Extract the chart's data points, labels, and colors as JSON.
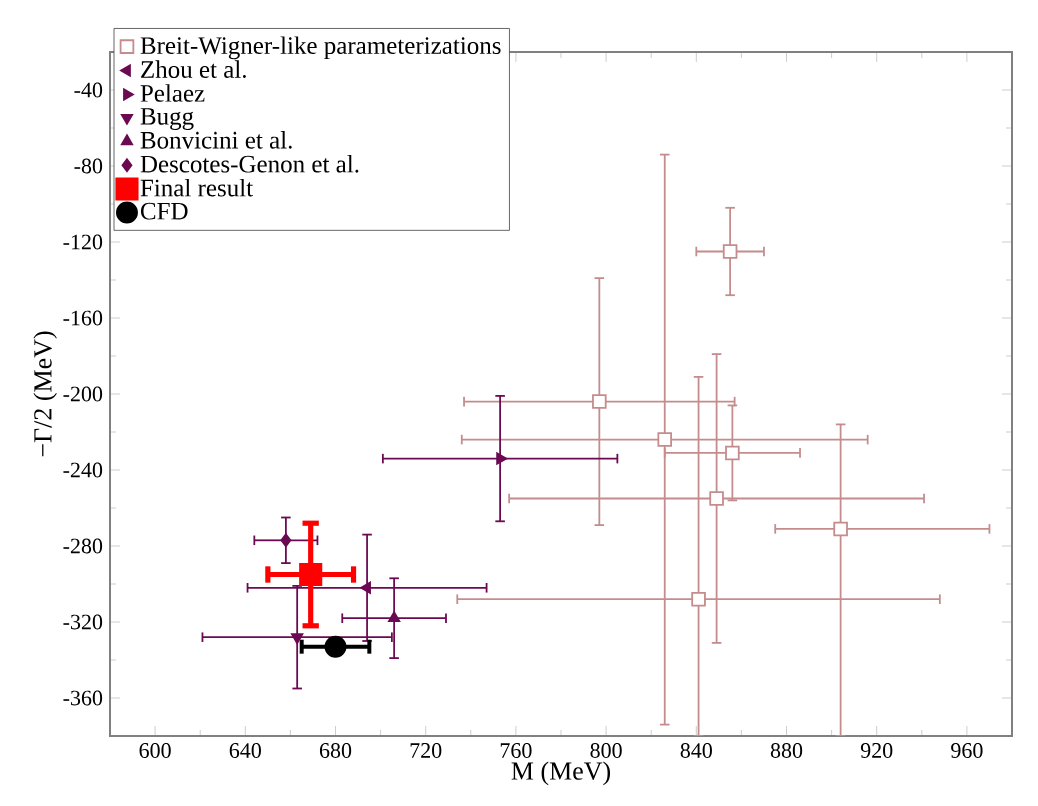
{
  "chart_data": {
    "type": "scatter",
    "xlabel": "M (MeV)",
    "ylabel": "−Γ/2 (MeV)",
    "xlim": [
      580,
      980
    ],
    "ylim": [
      -380,
      -20
    ],
    "xticks": [
      600,
      640,
      680,
      720,
      760,
      800,
      840,
      880,
      920,
      960
    ],
    "yticks": [
      -360,
      -320,
      -280,
      -240,
      -200,
      -160,
      -120,
      -80,
      -40
    ],
    "grid": false,
    "legend": "top left",
    "series": [
      {
        "name": "Breit-Wigner-like parameterizations",
        "color": "#c48c8c",
        "marker": "square-open",
        "x": [
          855,
          797,
          826,
          856,
          849,
          904,
          841
        ],
        "values": [
          -125,
          -204,
          -224,
          -231,
          -255,
          -271,
          -308
        ],
        "xerrors": [
          15,
          60,
          90,
          30,
          92,
          [
            875,
            970
          ],
          107
        ],
        "errors": [
          23,
          65,
          150,
          25,
          76,
          [
            -380,
            -216
          ],
          [
            -380,
            -191
          ]
        ]
      },
      {
        "name": "Zhou et al.",
        "color": "#6b0a52",
        "marker": "triangle-left",
        "x": [
          694
        ],
        "values": [
          -302
        ],
        "xerrors": [
          53
        ],
        "errors": [
          28
        ]
      },
      {
        "name": "Pelaez",
        "color": "#6b0a52",
        "marker": "triangle-right",
        "x": [
          753
        ],
        "values": [
          -234
        ],
        "xerrors": [
          52
        ],
        "errors": [
          33
        ]
      },
      {
        "name": "Bugg",
        "color": "#6b0a52",
        "marker": "triangle-down",
        "x": [
          663
        ],
        "values": [
          -328
        ],
        "xerrors": [
          42
        ],
        "errors": [
          27
        ]
      },
      {
        "name": "Bonvicini et al.",
        "color": "#6b0a52",
        "marker": "triangle",
        "x": [
          706
        ],
        "values": [
          -318
        ],
        "xerrors": [
          23
        ],
        "errors": [
          21
        ]
      },
      {
        "name": "Descotes-Genon et al.",
        "color": "#6b0a52",
        "marker": "diamond",
        "x": [
          658
        ],
        "values": [
          -277
        ],
        "xerrors": [
          14
        ],
        "errors": [
          12
        ]
      },
      {
        "name": "Final result",
        "color": "#ff0000",
        "marker": "square",
        "x": [
          669
        ],
        "values": [
          -295
        ],
        "xerrors": [
          19
        ],
        "errors": [
          27
        ]
      },
      {
        "name": "CFD",
        "color": "#000000",
        "marker": "circle",
        "x": [
          680
        ],
        "values": [
          -333
        ],
        "xerrors": [
          15
        ],
        "errors": [
          0
        ]
      }
    ]
  }
}
